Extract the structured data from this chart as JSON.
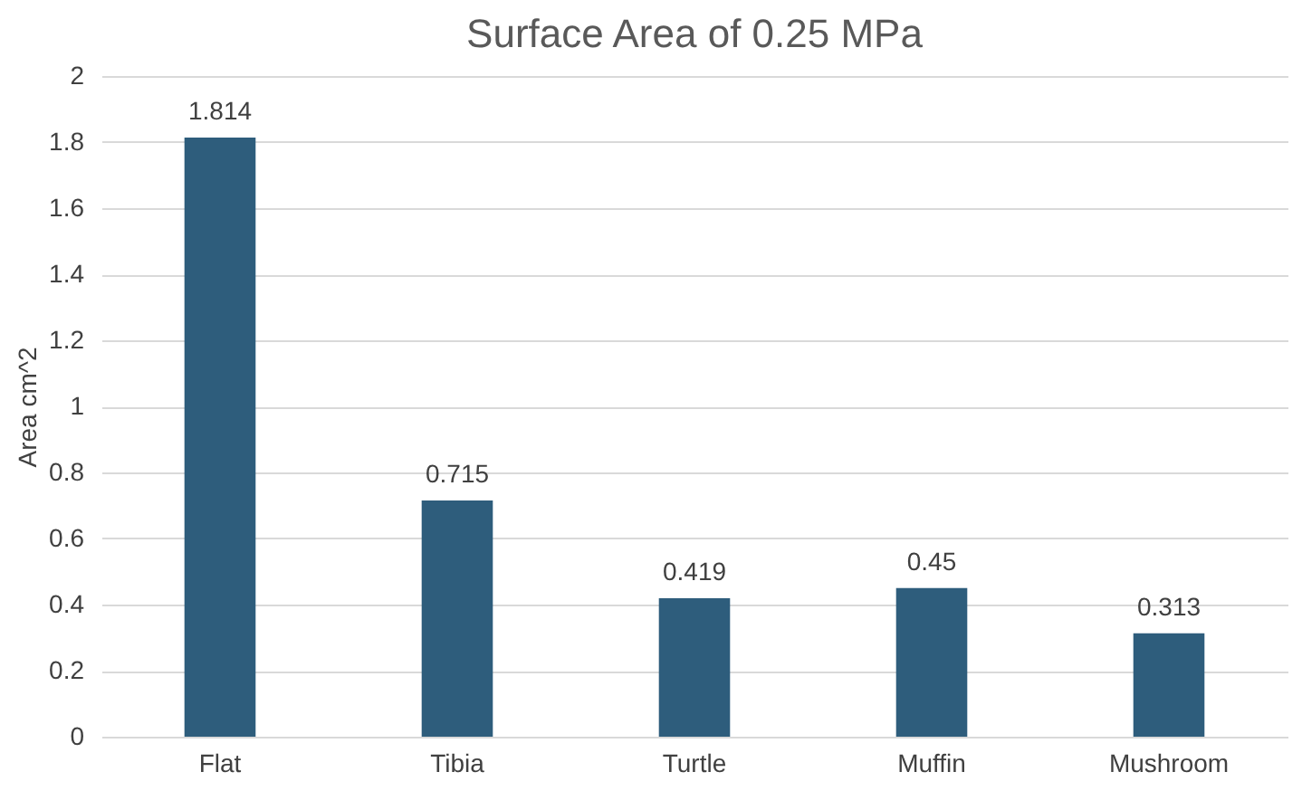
{
  "chart_data": {
    "type": "bar",
    "title": "Surface Area of 0.25 MPa",
    "ylabel": "Area cm^2",
    "categories": [
      "Flat",
      "Tibia",
      "Turtle",
      "Muffin",
      "Mushroom"
    ],
    "values": [
      1.814,
      0.715,
      0.419,
      0.45,
      0.313
    ],
    "color": "#2e5d7c",
    "ylim": [
      0,
      2
    ],
    "yticks": [
      0,
      0.2,
      0.4,
      0.6,
      0.8,
      1,
      1.2,
      1.4,
      1.6,
      1.8,
      2
    ],
    "grid": "y",
    "data_labels": true
  }
}
